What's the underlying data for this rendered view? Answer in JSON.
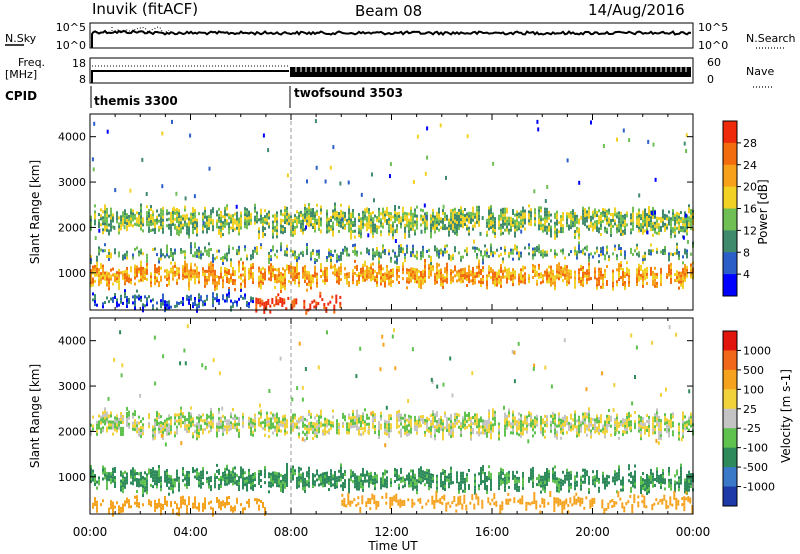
{
  "header": {
    "station": "Inuvik (fitACF)",
    "beam": "Beam 08",
    "date": "14/Aug/2016"
  },
  "nsky_panel": {
    "left_label": "N.Sky",
    "left_ticks": [
      "10^5",
      "10^0"
    ],
    "right_ticks": [
      "10^5",
      "10^0"
    ],
    "right_label": "N.Search"
  },
  "freq_panel": {
    "left_label_line1": "Freq.",
    "left_label_line2": "[MHz]",
    "left_ticks": [
      "18",
      "8"
    ],
    "right_ticks": [
      "60",
      "0"
    ],
    "right_label": "Nave"
  },
  "cpid_panel": {
    "label": "CPID",
    "modes": [
      {
        "name": "themis 3300",
        "start_hour": 0
      },
      {
        "name": "twofsound 3503",
        "start_hour": 8
      }
    ]
  },
  "time_axis": {
    "ticks": [
      "00:00",
      "04:00",
      "08:00",
      "12:00",
      "16:00",
      "20:00",
      "00:00"
    ],
    "title": "Time UT"
  },
  "power_panel": {
    "ylabel": "Slant Range [km]",
    "yticks": [
      "1000",
      "2000",
      "3000",
      "4000"
    ],
    "colorbar_label": "Power [dB]",
    "colorbar_ticks": [
      "4",
      "8",
      "12",
      "16",
      "20",
      "24",
      "28"
    ],
    "colors": [
      "#0000ff",
      "#2b5fc7",
      "#3f8a6c",
      "#6fbf54",
      "#f2d125",
      "#f7a11a",
      "#f26b0c",
      "#ee2a0a"
    ]
  },
  "velocity_panel": {
    "ylabel": "Slant Range [km]",
    "yticks": [
      "1000",
      "2000",
      "3000",
      "4000"
    ],
    "colorbar_label": "Velocity [m s-1]",
    "colorbar_ticks": [
      "1000",
      "500",
      "100",
      "25",
      "-25",
      "-100",
      "-500",
      "-1000"
    ],
    "colors": [
      "#1d3aa8",
      "#3a78c8",
      "#2e8a5a",
      "#5fc24f",
      "#c4c4c4",
      "#f2d23a",
      "#f5a31f",
      "#f2681a",
      "#e2150e"
    ]
  },
  "chart_data": [
    {
      "type": "line",
      "title": "N.Sky / N.Search",
      "x_hours": [
        0,
        2,
        4,
        6,
        8,
        10,
        12,
        14,
        16,
        18,
        20,
        22,
        24
      ],
      "series": [
        {
          "name": "N.Sky",
          "values": [
            50000,
            60000,
            55000,
            52000,
            50000,
            48000,
            50000,
            49000,
            50000,
            50000,
            52000,
            48000,
            50000
          ]
        }
      ],
      "ylim": [
        1,
        100000
      ]
    },
    {
      "type": "line",
      "title": "Freq / Nave",
      "x_hours": [
        0,
        8,
        24
      ],
      "series": [
        {
          "name": "Freq. [MHz]",
          "values": [
            11,
            11,
            11
          ]
        },
        {
          "name": "Nave",
          "values": [
            30,
            30,
            30
          ]
        }
      ],
      "ylim": [
        8,
        18
      ]
    },
    {
      "type": "heatmap",
      "title": "Power [dB]",
      "xlim_hours": [
        0,
        24
      ],
      "ylim_km": [
        180,
        4500
      ],
      "bands": [
        {
          "start_h": 0,
          "end_h": 24,
          "range_km": [
            1850,
            2450
          ],
          "power_db": 14
        },
        {
          "start_h": 0,
          "end_h": 24,
          "range_km": [
            700,
            1200
          ],
          "power_db": 22
        },
        {
          "start_h": 0,
          "end_h": 24,
          "range_km": [
            1300,
            1600
          ],
          "power_db": 12
        },
        {
          "start_h": 6.5,
          "end_h": 10,
          "range_km": [
            200,
            500
          ],
          "power_db": 30
        },
        {
          "start_h": 0,
          "end_h": 6.5,
          "range_km": [
            250,
            550
          ],
          "power_db": 6
        }
      ]
    },
    {
      "type": "heatmap",
      "title": "Velocity [m s-1]",
      "xlim_hours": [
        0,
        24
      ],
      "ylim_km": [
        180,
        4500
      ],
      "bands": [
        {
          "start_h": 0,
          "end_h": 24,
          "range_km": [
            1900,
            2450
          ],
          "velocity": 0
        },
        {
          "start_h": 0,
          "end_h": 24,
          "range_km": [
            700,
            1200
          ],
          "velocity": 150
        },
        {
          "start_h": 0,
          "end_h": 7,
          "range_km": [
            250,
            550
          ],
          "velocity": -300
        },
        {
          "start_h": 10,
          "end_h": 24,
          "range_km": [
            300,
            600
          ],
          "velocity": -300
        }
      ]
    }
  ]
}
